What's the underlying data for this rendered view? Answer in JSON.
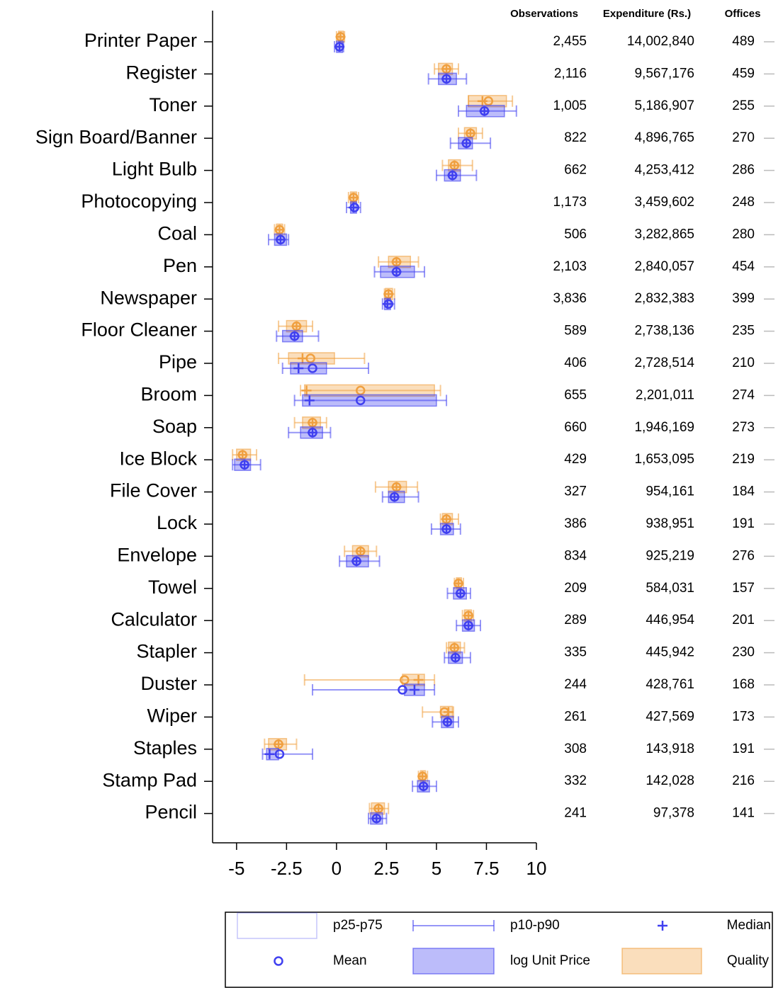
{
  "chart_data": {
    "type": "range-summary",
    "categories": [
      "Printer Paper",
      "Register",
      "Toner",
      "Sign Board/Banner",
      "Light Bulb",
      "Photocopying",
      "Coal",
      "Pen",
      "Newspaper",
      "Floor Cleaner",
      "Pipe",
      "Broom",
      "Soap",
      "Ice Block",
      "File Cover",
      "Lock",
      "Envelope",
      "Towel",
      "Calculator",
      "Stapler",
      "Duster",
      "Wiper",
      "Staples",
      "Stamp Pad",
      "Pencil"
    ],
    "xlim": [
      -6.2,
      10
    ],
    "xticks": [
      -5,
      -2.5,
      0,
      2.5,
      5,
      7.5,
      10
    ],
    "legend_labels": {
      "box": "p25-p75",
      "whisker": "p10-p90",
      "median": "Median",
      "mean": "Mean"
    },
    "series": [
      {
        "name": "log Unit Price",
        "color": "#4040f0",
        "p10": [
          -0.1,
          4.6,
          6.1,
          5.7,
          5.0,
          0.5,
          -3.4,
          1.9,
          2.3,
          -3.0,
          -2.7,
          -2.1,
          -2.4,
          -5.2,
          2.3,
          4.75,
          0.15,
          5.55,
          6.0,
          5.4,
          -1.2,
          4.8,
          -3.7,
          3.8,
          1.6
        ],
        "p25": [
          0.0,
          5.1,
          6.5,
          6.1,
          5.4,
          0.7,
          -3.1,
          2.2,
          2.4,
          -2.7,
          -2.3,
          -1.7,
          -1.8,
          -5.1,
          2.6,
          5.2,
          0.5,
          5.85,
          6.3,
          5.6,
          3.4,
          5.25,
          -3.5,
          4.05,
          1.7
        ],
        "median": [
          0.15,
          5.5,
          7.4,
          6.5,
          5.8,
          0.85,
          -2.8,
          3.0,
          2.55,
          -2.1,
          -1.9,
          -1.35,
          -1.2,
          -4.6,
          2.9,
          5.5,
          1.0,
          6.2,
          6.6,
          5.95,
          3.9,
          5.55,
          -3.35,
          4.35,
          2.0
        ],
        "mean": [
          0.15,
          5.5,
          7.4,
          6.5,
          5.8,
          0.9,
          -2.8,
          3.0,
          2.6,
          -2.1,
          -1.2,
          1.2,
          -1.2,
          -4.6,
          2.9,
          5.5,
          1.0,
          6.2,
          6.6,
          5.95,
          3.3,
          5.55,
          -2.85,
          4.35,
          2.0
        ],
        "p75": [
          0.3,
          6.0,
          8.4,
          6.8,
          6.2,
          1.0,
          -2.5,
          3.9,
          2.7,
          -1.7,
          -0.5,
          5.0,
          -0.7,
          -4.3,
          3.4,
          5.85,
          1.6,
          6.5,
          6.9,
          6.3,
          4.4,
          5.85,
          -2.9,
          4.65,
          2.3
        ],
        "p90": [
          0.35,
          6.5,
          9.0,
          7.7,
          7.0,
          1.2,
          -2.4,
          4.4,
          2.9,
          -0.9,
          1.6,
          5.5,
          -0.3,
          -3.8,
          4.1,
          6.2,
          2.15,
          6.7,
          7.2,
          6.7,
          4.9,
          6.1,
          -1.2,
          5.0,
          2.5
        ]
      },
      {
        "name": "Quality",
        "color": "#f0a040",
        "p10": [
          0.0,
          4.9,
          6.6,
          6.1,
          5.3,
          0.6,
          -3.1,
          2.1,
          2.4,
          -2.9,
          -2.9,
          -1.8,
          -2.1,
          -5.2,
          1.95,
          5.2,
          0.4,
          5.9,
          6.3,
          5.5,
          -1.6,
          4.3,
          -3.6,
          4.1,
          1.65
        ],
        "p25": [
          0.1,
          5.1,
          6.6,
          6.4,
          5.6,
          0.7,
          -3.0,
          2.6,
          2.45,
          -2.5,
          -2.4,
          -1.6,
          -1.7,
          -5.0,
          2.6,
          5.3,
          0.8,
          6.0,
          6.4,
          5.6,
          3.3,
          5.2,
          -3.4,
          4.2,
          1.75
        ],
        "median": [
          0.2,
          5.5,
          7.3,
          6.7,
          5.9,
          0.85,
          -2.85,
          3.0,
          2.6,
          -2.0,
          -1.7,
          -1.5,
          -1.2,
          -4.7,
          3.0,
          5.5,
          1.2,
          6.1,
          6.6,
          5.9,
          4.1,
          5.6,
          -2.9,
          4.3,
          2.1
        ],
        "mean": [
          0.2,
          5.5,
          7.6,
          6.7,
          5.9,
          0.85,
          -2.85,
          3.0,
          2.6,
          -2.0,
          -1.3,
          1.2,
          -1.2,
          -4.7,
          3.0,
          5.5,
          1.2,
          6.1,
          6.6,
          5.9,
          3.4,
          5.4,
          -2.9,
          4.3,
          2.1
        ],
        "p75": [
          0.35,
          5.8,
          8.5,
          7.0,
          6.2,
          1.0,
          -2.7,
          3.7,
          2.8,
          -1.5,
          -0.1,
          4.9,
          -0.8,
          -4.3,
          3.5,
          5.8,
          1.6,
          6.25,
          6.75,
          6.2,
          4.4,
          5.8,
          -2.5,
          4.45,
          2.4
        ],
        "p90": [
          0.4,
          6.1,
          8.8,
          7.3,
          6.8,
          1.1,
          -2.6,
          4.1,
          2.9,
          -1.2,
          1.4,
          5.2,
          -0.5,
          -4.0,
          4.05,
          6.1,
          2.0,
          6.35,
          6.85,
          6.4,
          4.9,
          5.85,
          -2.0,
          4.55,
          2.6
        ]
      }
    ]
  },
  "table": {
    "columns": [
      "Observations",
      "Expenditure (Rs.)",
      "Offices"
    ],
    "rows": [
      [
        "2,455",
        "14,002,840",
        "489"
      ],
      [
        "2,116",
        "9,567,176",
        "459"
      ],
      [
        "1,005",
        "5,186,907",
        "255"
      ],
      [
        "822",
        "4,896,765",
        "270"
      ],
      [
        "662",
        "4,253,412",
        "286"
      ],
      [
        "1,173",
        "3,459,602",
        "248"
      ],
      [
        "506",
        "3,282,865",
        "280"
      ],
      [
        "2,103",
        "2,840,057",
        "454"
      ],
      [
        "3,836",
        "2,832,383",
        "399"
      ],
      [
        "589",
        "2,738,136",
        "235"
      ],
      [
        "406",
        "2,728,514",
        "210"
      ],
      [
        "655",
        "2,201,011",
        "274"
      ],
      [
        "660",
        "1,946,169",
        "273"
      ],
      [
        "429",
        "1,653,095",
        "219"
      ],
      [
        "327",
        "954,161",
        "184"
      ],
      [
        "386",
        "938,951",
        "191"
      ],
      [
        "834",
        "925,219",
        "276"
      ],
      [
        "209",
        "584,031",
        "157"
      ],
      [
        "289",
        "446,954",
        "201"
      ],
      [
        "335",
        "445,942",
        "230"
      ],
      [
        "244",
        "428,761",
        "168"
      ],
      [
        "261",
        "427,569",
        "173"
      ],
      [
        "308",
        "143,918",
        "191"
      ],
      [
        "332",
        "142,028",
        "216"
      ],
      [
        "241",
        "97,378",
        "141"
      ]
    ]
  }
}
